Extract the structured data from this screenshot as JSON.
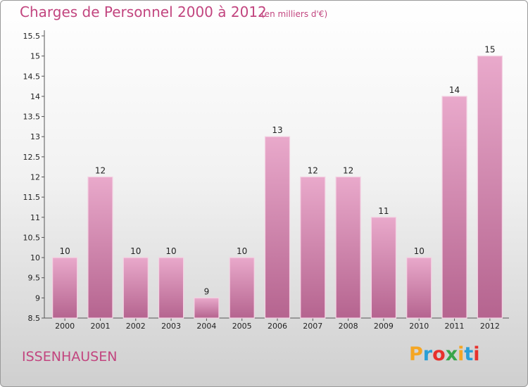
{
  "chart_data": {
    "type": "bar",
    "title": "Charges de Personnel 2000 à 2012",
    "subtitle": "(en milliers d'€)",
    "categories": [
      "2000",
      "2001",
      "2002",
      "2003",
      "2004",
      "2005",
      "2006",
      "2007",
      "2008",
      "2009",
      "2010",
      "2011",
      "2012"
    ],
    "values": [
      10,
      12,
      10,
      10,
      9,
      10,
      13,
      12,
      12,
      11,
      10,
      14,
      15
    ],
    "ylim": [
      8.5,
      15.5
    ],
    "yticks": [
      "8.5",
      "9",
      "9.5",
      "10",
      "10.5",
      "11",
      "11.5",
      "12",
      "12.5",
      "13",
      "13.5",
      "14",
      "14.5",
      "15",
      "15.5"
    ],
    "grid": false,
    "bar_color": "#c0679a"
  },
  "place_name": "ISSENHAUSEN",
  "logo": {
    "letters": [
      "P",
      "r",
      "o",
      "x",
      "i",
      "t",
      "i"
    ],
    "colors": [
      "#f5a623",
      "#2a9fd6",
      "#e8312c",
      "#3aa54a",
      "#f5a623",
      "#2a9fd6",
      "#e8312c"
    ]
  }
}
